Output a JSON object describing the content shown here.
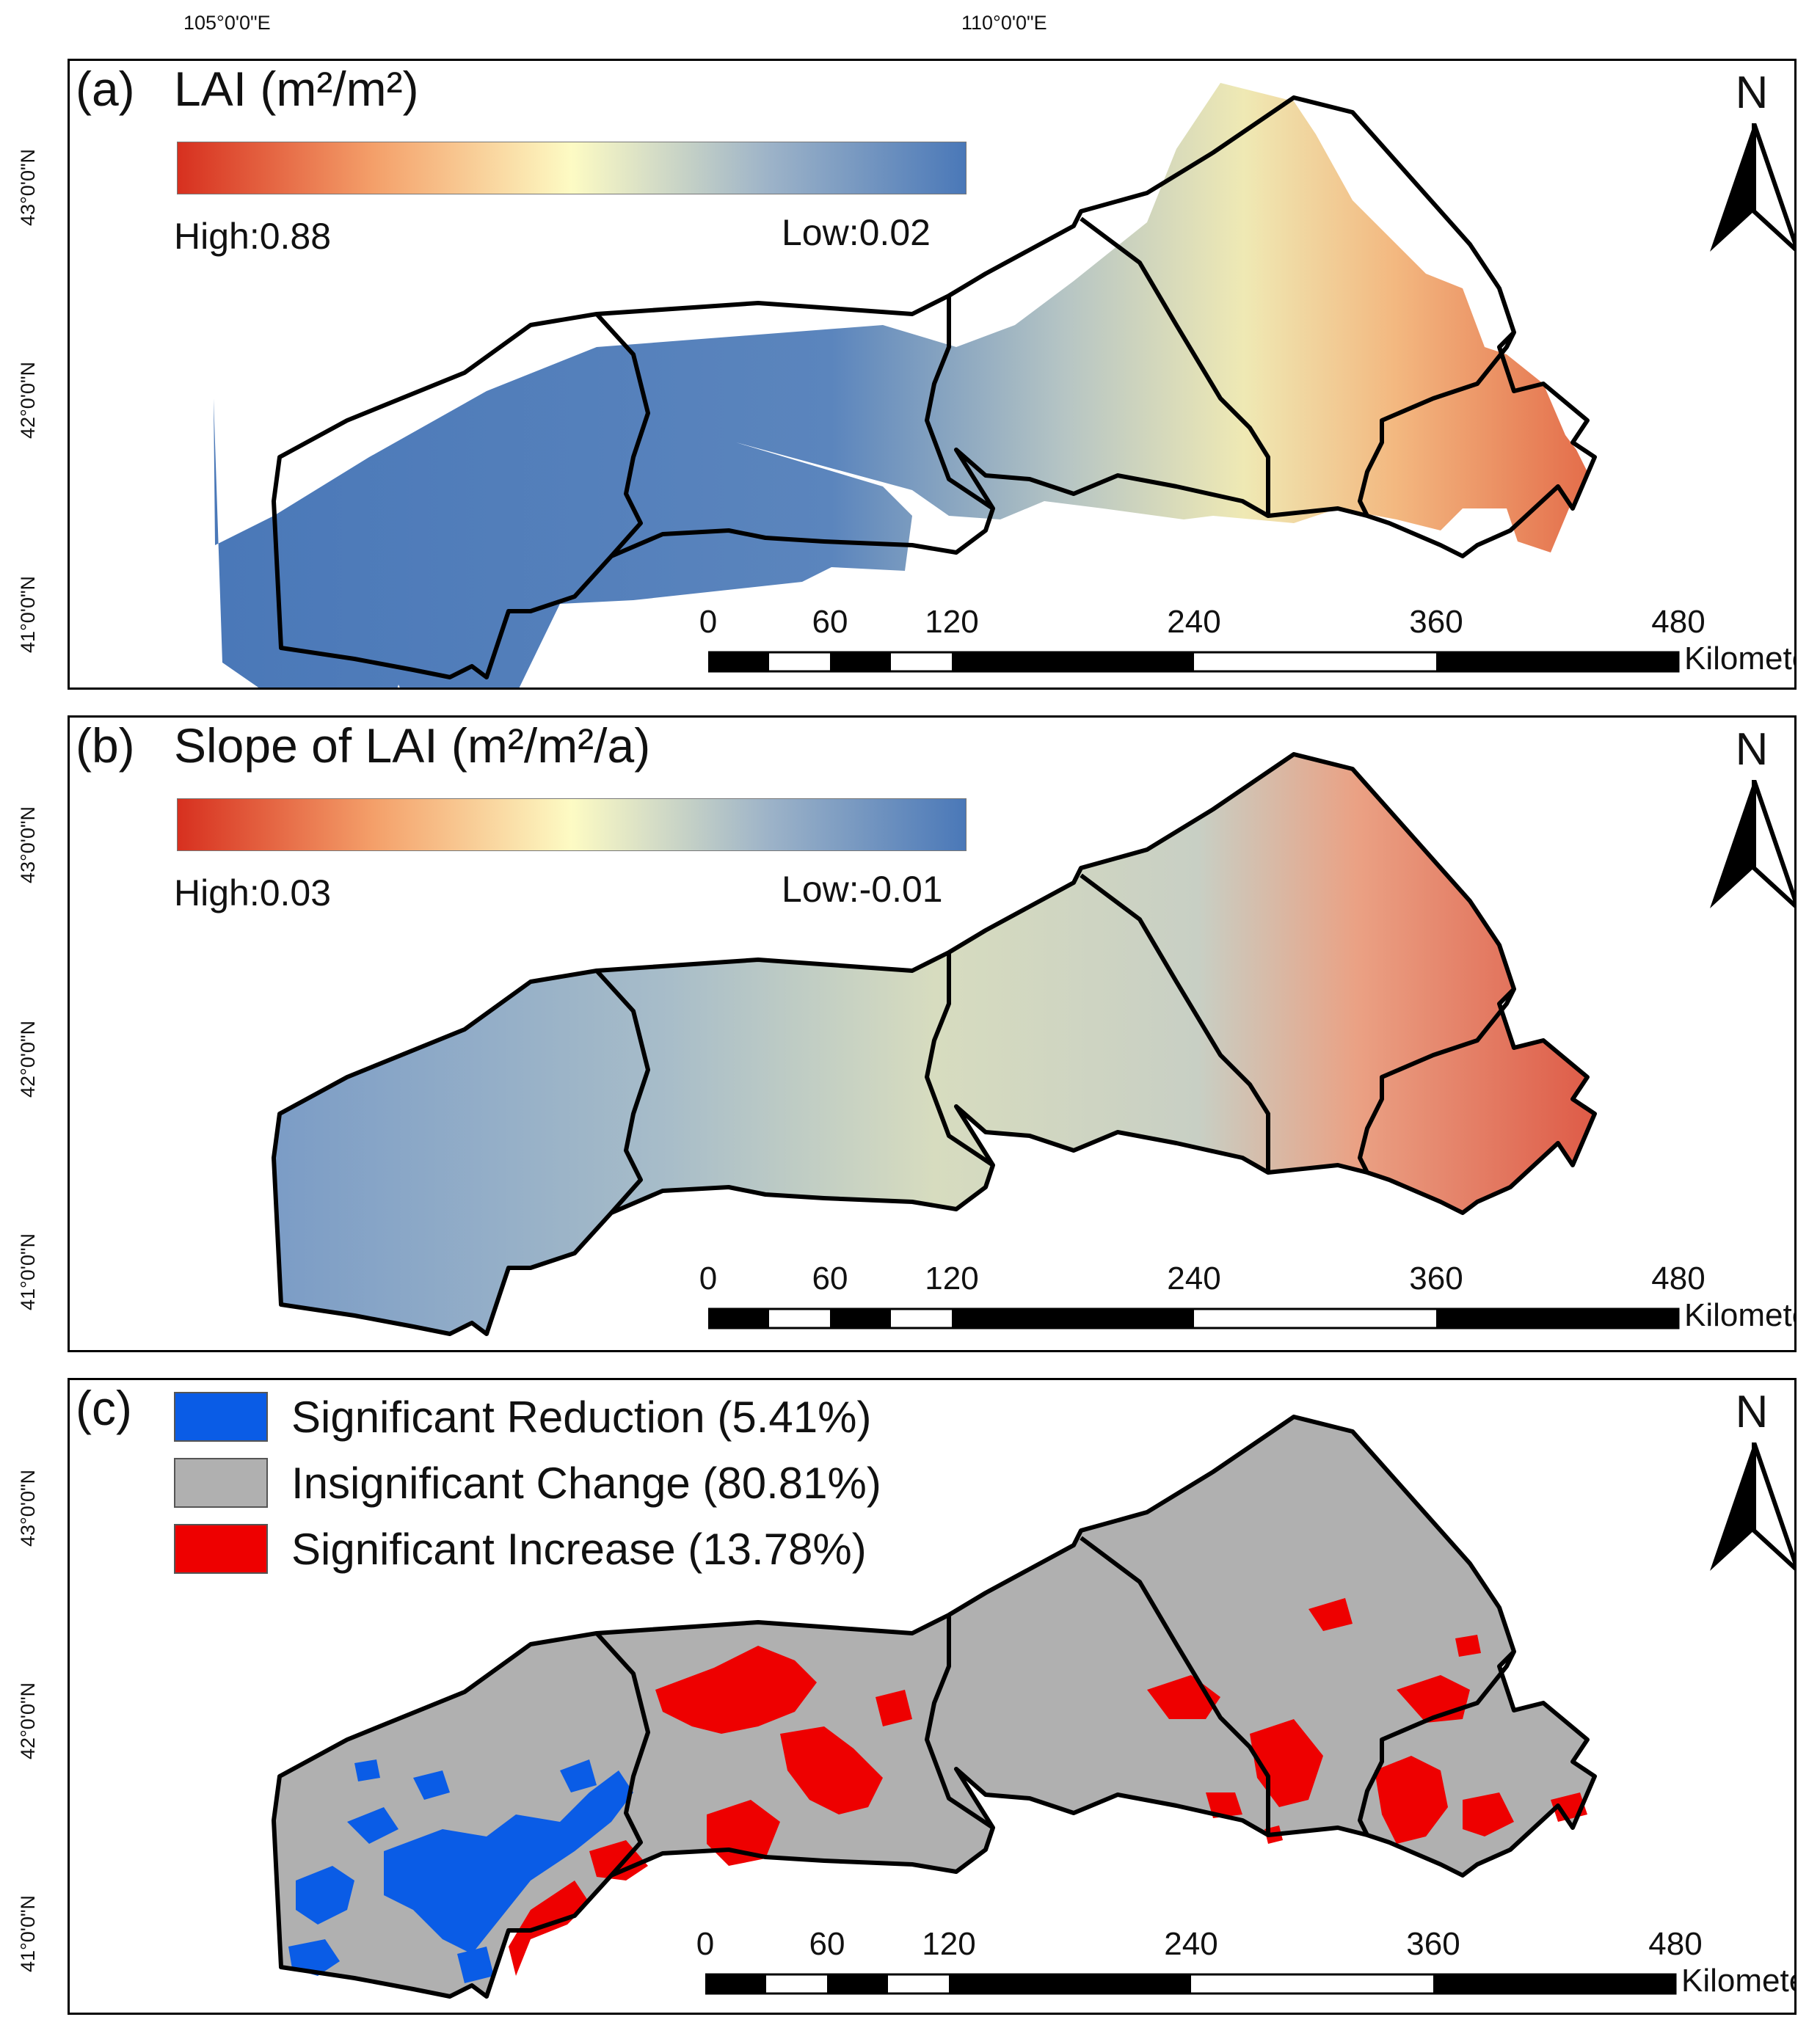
{
  "axes": {
    "lon_labels": [
      "105°0'0\"E",
      "110°0'0\"E"
    ],
    "lat_labels": [
      "43°0'0\"N",
      "42°0'0\"N",
      "41°0'0\"N"
    ]
  },
  "north_arrow": {
    "letter": "N",
    "icon": "north-arrow-icon"
  },
  "scale_bar": {
    "ticks": [
      "0",
      "60",
      "120",
      "240",
      "360",
      "480"
    ],
    "unit": "Kilometers"
  },
  "panels": {
    "a": {
      "tag": "(a)",
      "title": "LAI (m²/m²)",
      "colorbar": {
        "high_label": "High:0.88",
        "low_label": "Low:0.02",
        "high": 0.88,
        "low": 0.02
      }
    },
    "b": {
      "tag": "(b)",
      "title": "Slope of LAI (m²/m²/a)",
      "colorbar": {
        "high_label": "High:0.03",
        "low_label": "Low:-0.01",
        "high": 0.03,
        "low": -0.01
      }
    },
    "c": {
      "tag": "(c)",
      "legend": [
        {
          "label": "Significant Reduction (5.41%)",
          "color": "#0a5ce6",
          "percent": 5.41
        },
        {
          "label": "Insignificant Change (80.81%)",
          "color": "#b0b0b0",
          "percent": 80.81
        },
        {
          "label": "Significant Increase (13.78%)",
          "color": "#ee0000",
          "percent": 13.78
        }
      ]
    }
  },
  "colors": {
    "ramp_high": "#d7301f",
    "ramp_mid": "#fdfbc4",
    "ramp_low": "#4a78b8",
    "boundary": "#000000",
    "region_gray": "#b0b0b0"
  }
}
